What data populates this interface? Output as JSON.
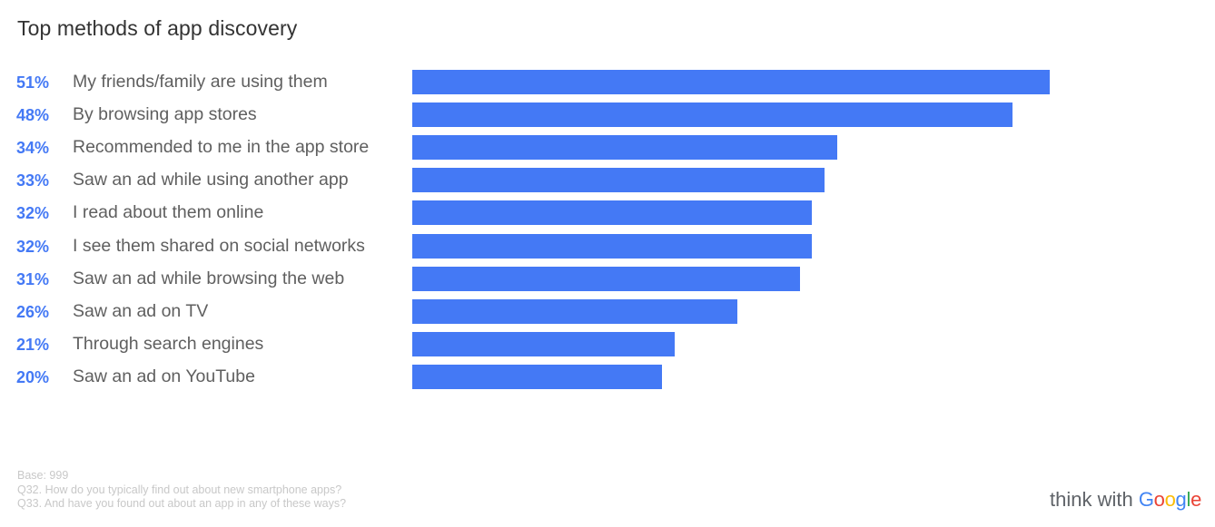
{
  "title": "Top methods of app discovery",
  "colors": {
    "bar": "#4479f5",
    "percent": "#4479f5"
  },
  "chart_data": {
    "type": "bar",
    "orientation": "horizontal",
    "title": "Top methods of app discovery",
    "categories": [
      "My friends/family are using them",
      "By browsing app stores",
      "Recommended to me in the app store",
      "Saw an ad while using another app",
      "I read about them online",
      "I see them shared on social networks",
      "Saw an ad while browsing the web",
      "Saw an ad on TV",
      "Through search engines",
      "Saw an ad on YouTube"
    ],
    "values": [
      51,
      48,
      34,
      33,
      32,
      32,
      31,
      26,
      21,
      20
    ],
    "value_labels": [
      "51%",
      "48%",
      "34%",
      "33%",
      "32%",
      "32%",
      "31%",
      "26%",
      "21%",
      "20%"
    ],
    "xlim": [
      0,
      51
    ],
    "grid": false
  },
  "footer": {
    "base": "Base: 999",
    "q32": "Q32. How do you typically find out about new smartphone apps?",
    "q33": "Q33. And have you found out about an app in any of these ways?"
  },
  "brand": {
    "prefix": "think with ",
    "word": "Google",
    "letter_colors": [
      "#4285f4",
      "#ea4335",
      "#fbbc05",
      "#4285f4",
      "#34a853",
      "#ea4335"
    ]
  }
}
